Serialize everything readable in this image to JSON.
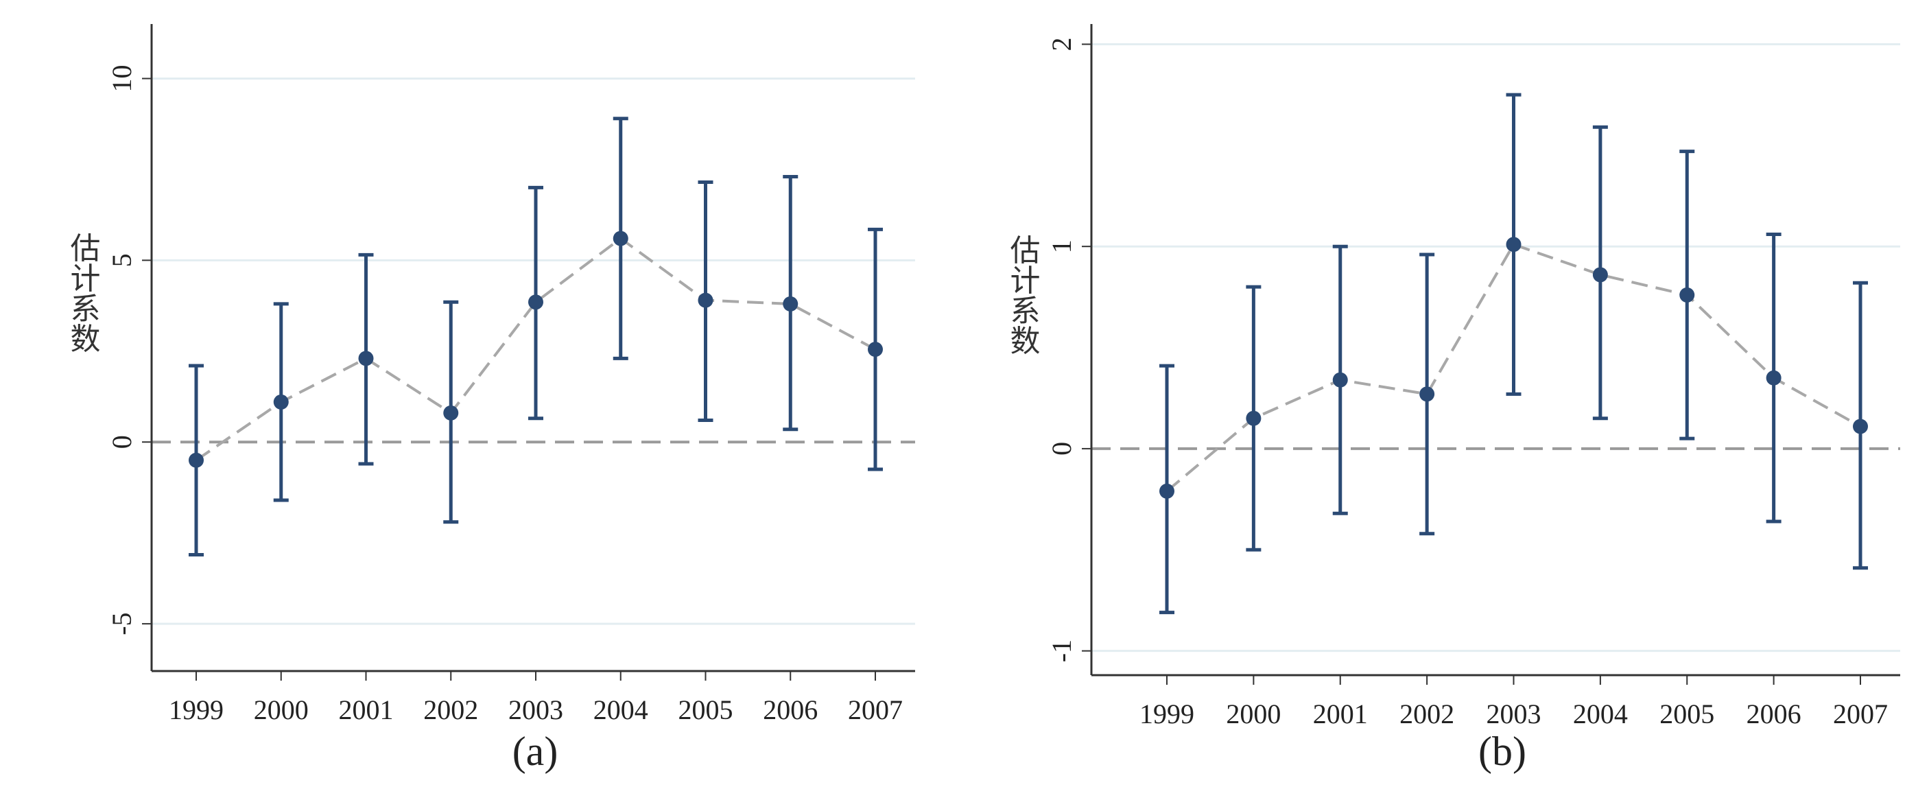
{
  "colors": {
    "marker": "#2b4a74",
    "grid": "#e3edf1",
    "connector": "#a8a8a8",
    "zero_line": "#9a9a9a",
    "axis": "#333333"
  },
  "chart_data": [
    {
      "type": "scatter",
      "caption": "(a)",
      "ylabel": "估计系数",
      "xlabel": "",
      "categories": [
        "1999",
        "2000",
        "2001",
        "2002",
        "2003",
        "2004",
        "2005",
        "2006",
        "2007"
      ],
      "ylim": [
        -6.3,
        11.5
      ],
      "yticks": [
        -5,
        0,
        5,
        10
      ],
      "ytick_labels": [
        "-5",
        "0",
        "5",
        "10"
      ],
      "grid": true,
      "reference_line": 0,
      "values": [
        -0.5,
        1.1,
        2.3,
        0.8,
        3.85,
        5.6,
        3.9,
        3.8,
        2.55
      ],
      "ci_lower": [
        -3.1,
        -1.6,
        -0.6,
        -2.2,
        0.65,
        2.3,
        0.6,
        0.35,
        -0.75
      ],
      "ci_upper": [
        2.1,
        3.8,
        5.15,
        3.85,
        7.0,
        8.9,
        7.15,
        7.3,
        5.85
      ]
    },
    {
      "type": "scatter",
      "caption": "(b)",
      "ylabel": "估计系数",
      "xlabel": "",
      "categories": [
        "1999",
        "2000",
        "2001",
        "2002",
        "2003",
        "2004",
        "2005",
        "2006",
        "2007"
      ],
      "ylim": [
        -1.12,
        2.1
      ],
      "yticks": [
        -1,
        0,
        1,
        2
      ],
      "ytick_labels": [
        "-1",
        "0",
        "1",
        "2"
      ],
      "grid": true,
      "reference_line": 0,
      "values": [
        -0.21,
        0.15,
        0.34,
        0.27,
        1.01,
        0.86,
        0.76,
        0.35,
        0.11
      ],
      "ci_lower": [
        -0.81,
        -0.5,
        -0.32,
        -0.42,
        0.27,
        0.15,
        0.05,
        -0.36,
        -0.59
      ],
      "ci_upper": [
        0.41,
        0.8,
        1.0,
        0.96,
        1.75,
        1.59,
        1.47,
        1.06,
        0.82
      ]
    }
  ]
}
